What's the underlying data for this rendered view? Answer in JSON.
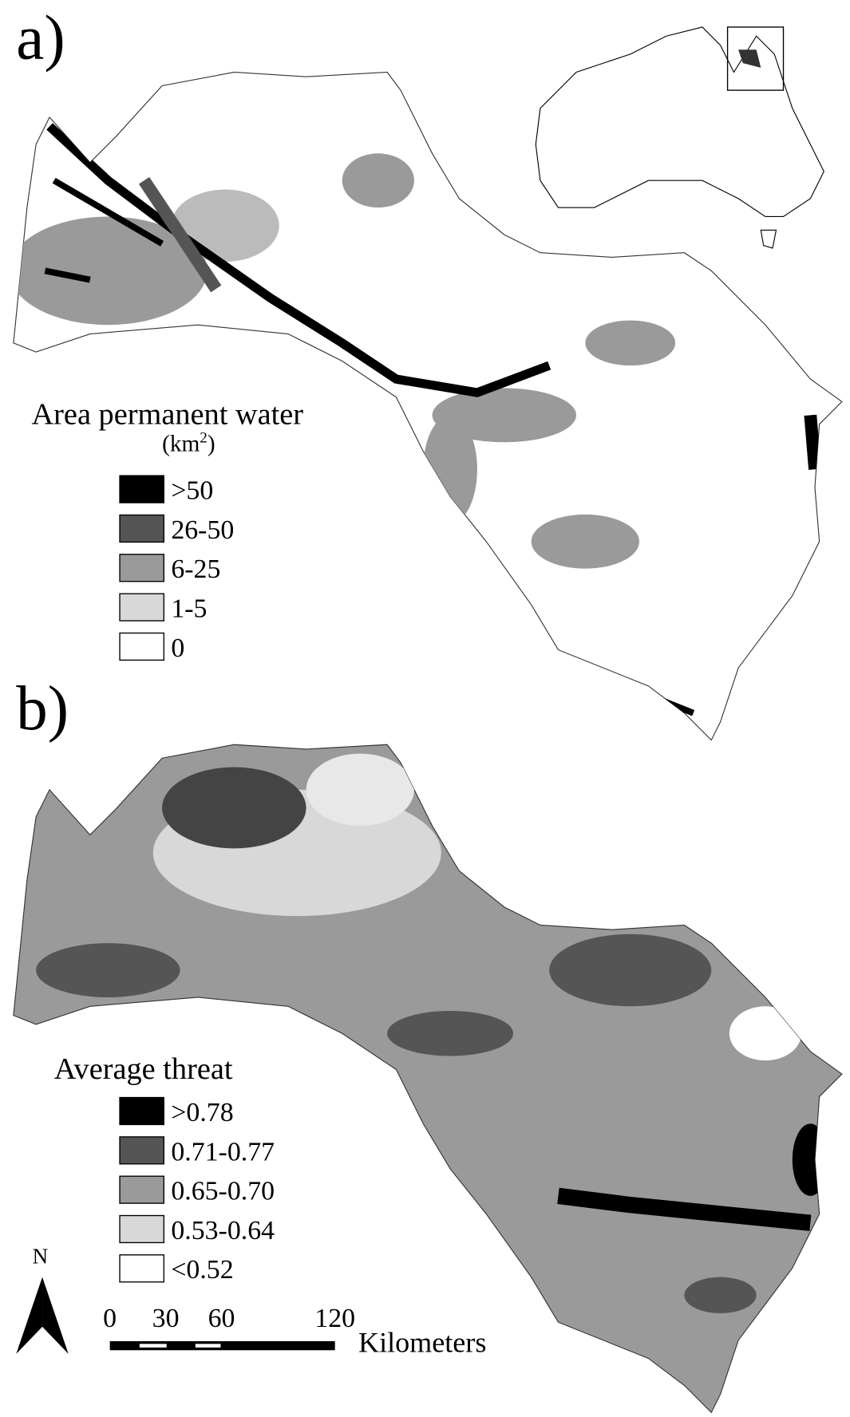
{
  "panels": [
    {
      "label": "a)",
      "legend_title": "Area permanent water",
      "legend_unit": {
        "open": "(km",
        "exponent": "2",
        "close": ")"
      },
      "legend": [
        {
          "label": ">50",
          "color": "#000000"
        },
        {
          "label": "26-50",
          "color": "#555555"
        },
        {
          "label": "6-25",
          "color": "#9a9a9a"
        },
        {
          "label": "1-5",
          "color": "#d8d8d8"
        },
        {
          "label": "0",
          "color": "#ffffff"
        }
      ]
    },
    {
      "label": "b)",
      "legend_title": "Average threat",
      "legend": [
        {
          "label": ">0.78",
          "color": "#000000"
        },
        {
          "label": "0.71-0.77",
          "color": "#555555"
        },
        {
          "label": "0.65-0.70",
          "color": "#9a9a9a"
        },
        {
          "label": "0.53-0.64",
          "color": "#d8d8d8"
        },
        {
          "label": "<0.52",
          "color": "#ffffff"
        }
      ]
    }
  ],
  "north_arrow": "N",
  "scale_bar": {
    "ticks": [
      "0",
      "30",
      "60",
      "120"
    ],
    "unit": "Kilometers"
  }
}
